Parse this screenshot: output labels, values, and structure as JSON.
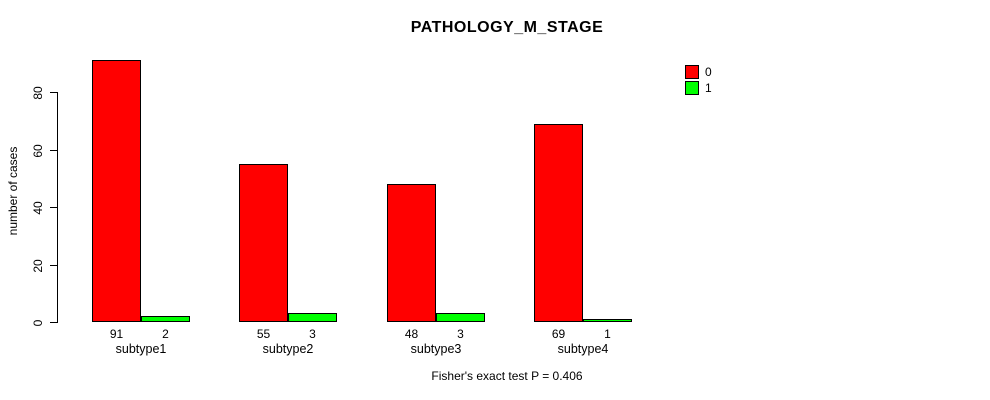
{
  "chart_data": {
    "type": "bar",
    "title": "PATHOLOGY_M_STAGE",
    "xlabel": "",
    "ylabel": "number of cases",
    "categories": [
      "subtype1",
      "subtype2",
      "subtype3",
      "subtype4"
    ],
    "series": [
      {
        "name": "0",
        "color": "#ff0000",
        "values": [
          91,
          55,
          48,
          69
        ]
      },
      {
        "name": "1",
        "color": "#00ff00",
        "values": [
          2,
          3,
          3,
          1
        ]
      }
    ],
    "bar_value_labels_shown": true,
    "ylim": [
      0,
      80
    ],
    "yticks": [
      0,
      20,
      40,
      60,
      80
    ],
    "grid": false,
    "legend_position": "top-right",
    "annotation": "Fisher's exact test P = 0.406"
  },
  "colors": {
    "series_0": "#ff0000",
    "series_1": "#00ff00",
    "axis": "#000000",
    "text": "#000000",
    "background": "#ffffff"
  }
}
